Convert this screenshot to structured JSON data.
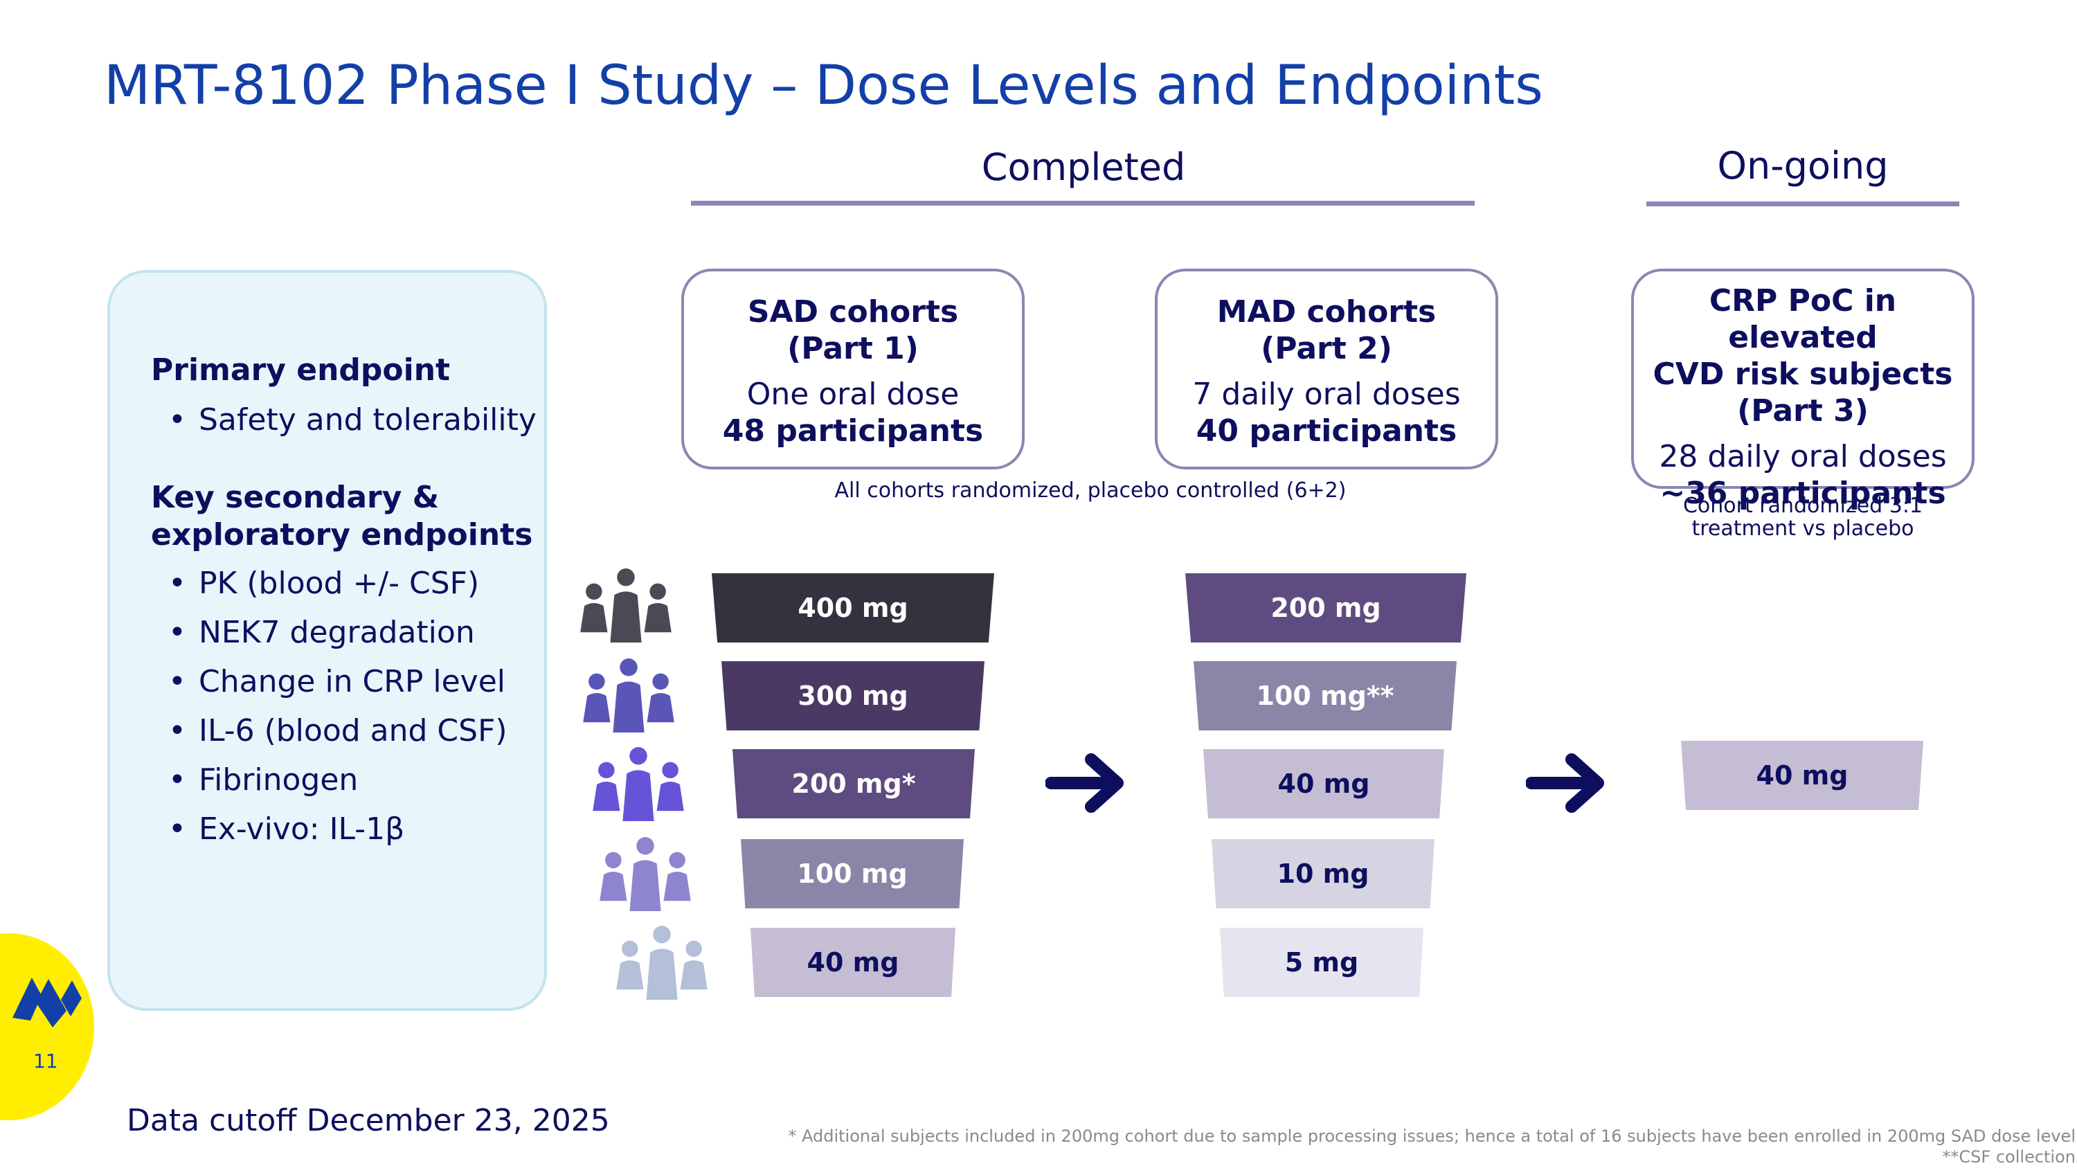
{
  "title": "MRT-8102 Phase I Study – Dose Levels and Endpoints",
  "sections": {
    "completed": "Completed",
    "ongoing": "On-going"
  },
  "endpoints": {
    "primary_title": "Primary endpoint",
    "primary_items": [
      "Safety and tolerability"
    ],
    "secondary_title_line1": "Key secondary &",
    "secondary_title_line2": "exploratory endpoints",
    "secondary_items": [
      "PK (blood +/- CSF)",
      "NEK7 degradation",
      "Change in CRP level",
      "IL-6 (blood and CSF)",
      "Fibrinogen",
      "Ex-vivo: IL-1β"
    ]
  },
  "cohorts": {
    "sad": {
      "title_line1": "SAD cohorts",
      "title_line2": "(Part 1)",
      "dosing": "One oral dose",
      "participants": "48 participants"
    },
    "mad": {
      "title_line1": "MAD cohorts",
      "title_line2": "(Part 2)",
      "dosing": "7 daily oral doses",
      "participants": "40 participants"
    },
    "crp": {
      "title_line1": "CRP PoC in elevated",
      "title_line2": "CVD risk subjects",
      "title_line3": "(Part 3)",
      "dosing": "28 daily oral doses",
      "participants": "~36 participants"
    }
  },
  "notes": {
    "randomized": "All cohorts randomized, placebo controlled (6+2)",
    "crp_line1": "Cohort randomized 3:1",
    "crp_line2": "treatment vs placebo"
  },
  "doses": {
    "sad": [
      "400 mg",
      "300 mg",
      "200 mg*",
      "100 mg",
      "40 mg"
    ],
    "mad": [
      "200 mg",
      "100 mg**",
      "40 mg",
      "10 mg",
      "5 mg"
    ],
    "crp": [
      "40 mg"
    ]
  },
  "colors": {
    "title": "#1340a8",
    "text": "#0d0f5e",
    "rule": "#8b86b3",
    "dose_400": "#33333f",
    "dose_300": "#4a3a63",
    "dose_200": "#5e4b80",
    "dose_100": "#8b86a8",
    "dose_40": "#c5bdd3",
    "dose_10": "#d6d4e2",
    "dose_5": "#e6e4ee",
    "people": [
      "#4a4a55",
      "#5a56b8",
      "#6554d8",
      "#8d85d0",
      "#b4c0d8"
    ]
  },
  "icons": {
    "people": "people-group-icon",
    "arrow": "arrow-right-icon",
    "logo": "company-logo-icon"
  },
  "page_number": "11",
  "data_cutoff": "Data cutoff December 23, 2025",
  "footnotes": [
    "* Additional subjects included in 200mg cohort due to sample processing issues; hence a total of 16 subjects have been enrolled in 200mg SAD dose level",
    "**CSF collection"
  ]
}
